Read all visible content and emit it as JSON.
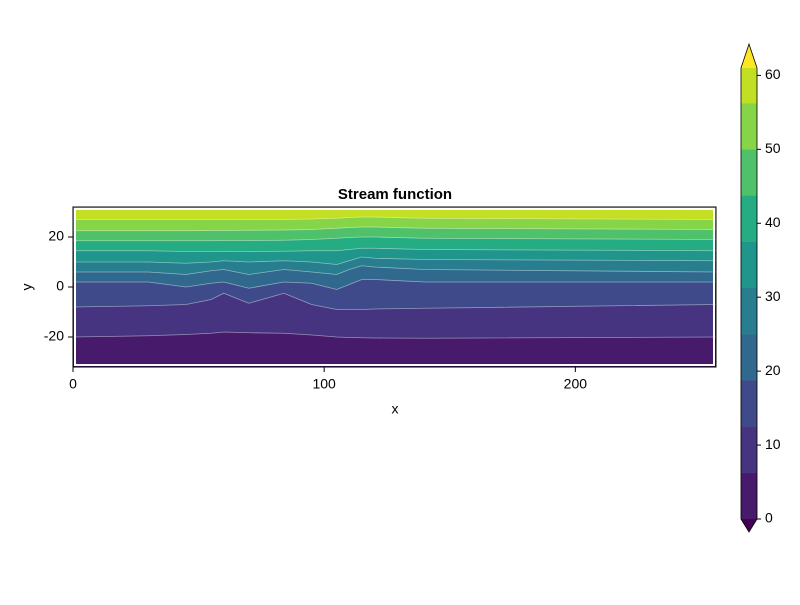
{
  "chart_data": {
    "type": "contour",
    "title": "Stream function",
    "x_label": "x",
    "y_label": "y",
    "xlim": [
      0,
      256
    ],
    "ylim": [
      -32,
      32
    ],
    "xticks": [
      0,
      100,
      200
    ],
    "yticks": [
      -20,
      0,
      20
    ],
    "x": [
      0,
      30,
      45,
      55,
      60,
      70,
      84,
      95,
      105,
      110,
      115,
      120,
      140,
      256
    ],
    "contours": [
      {
        "level": 6.25,
        "y": [
          -20,
          -19.5,
          -19,
          -18.5,
          -18,
          -18.3,
          -18.5,
          -19.2,
          -20,
          -20.2,
          -20.3,
          -20.4,
          -20.5,
          -20
        ]
      },
      {
        "level": 12.5,
        "y": [
          -8,
          -7.5,
          -7,
          -5,
          -2.5,
          -6.5,
          -2.5,
          -7,
          -9,
          -9,
          -9,
          -8.8,
          -8.5,
          -7
        ]
      },
      {
        "level": 18.75,
        "y": [
          2,
          2,
          0,
          1.5,
          2,
          -0.5,
          2,
          1.5,
          -1,
          1,
          3,
          3,
          2,
          2
        ]
      },
      {
        "level": 25,
        "y": [
          6,
          6,
          5,
          6.5,
          7,
          5,
          7,
          6,
          5,
          7,
          8.5,
          8,
          7,
          6
        ]
      },
      {
        "level": 31.25,
        "y": [
          10,
          10,
          9.5,
          10,
          10.5,
          10,
          10.5,
          10,
          9,
          10.5,
          12,
          11.5,
          11,
          10.5
        ]
      },
      {
        "level": 37.5,
        "y": [
          14.5,
          14.5,
          14.2,
          14.2,
          14.3,
          14.2,
          14.3,
          14.5,
          14.5,
          15,
          15.5,
          15.5,
          15,
          14.5
        ]
      },
      {
        "level": 43.75,
        "y": [
          18.5,
          18.5,
          18.5,
          18.5,
          18.6,
          18.6,
          18.7,
          19,
          19.5,
          19.8,
          20,
          20,
          19.5,
          19
        ]
      },
      {
        "level": 50,
        "y": [
          22.5,
          22.5,
          22.5,
          22.6,
          22.6,
          22.7,
          22.8,
          23,
          23.5,
          23.8,
          24,
          24,
          23.5,
          23
        ]
      },
      {
        "level": 56.25,
        "y": [
          27,
          27,
          27,
          27,
          27,
          27,
          27,
          27.2,
          27.5,
          27.8,
          28,
          28,
          27.5,
          27
        ]
      }
    ],
    "colors": [
      "#481a6c",
      "#463480",
      "#3e4a89",
      "#31688e",
      "#287d8e",
      "#1f958b",
      "#25ac82",
      "#4fc16b",
      "#86d549",
      "#c2df23"
    ],
    "colorbar": {
      "lim": [
        0,
        61
      ],
      "levels": [
        0,
        6.25,
        12.5,
        18.75,
        25,
        31.25,
        37.5,
        43.75,
        50,
        56.25
      ],
      "ticks": [
        0,
        10,
        20,
        30,
        40,
        50,
        60
      ],
      "extend_colors": [
        "#440154",
        "#fde725"
      ]
    }
  }
}
